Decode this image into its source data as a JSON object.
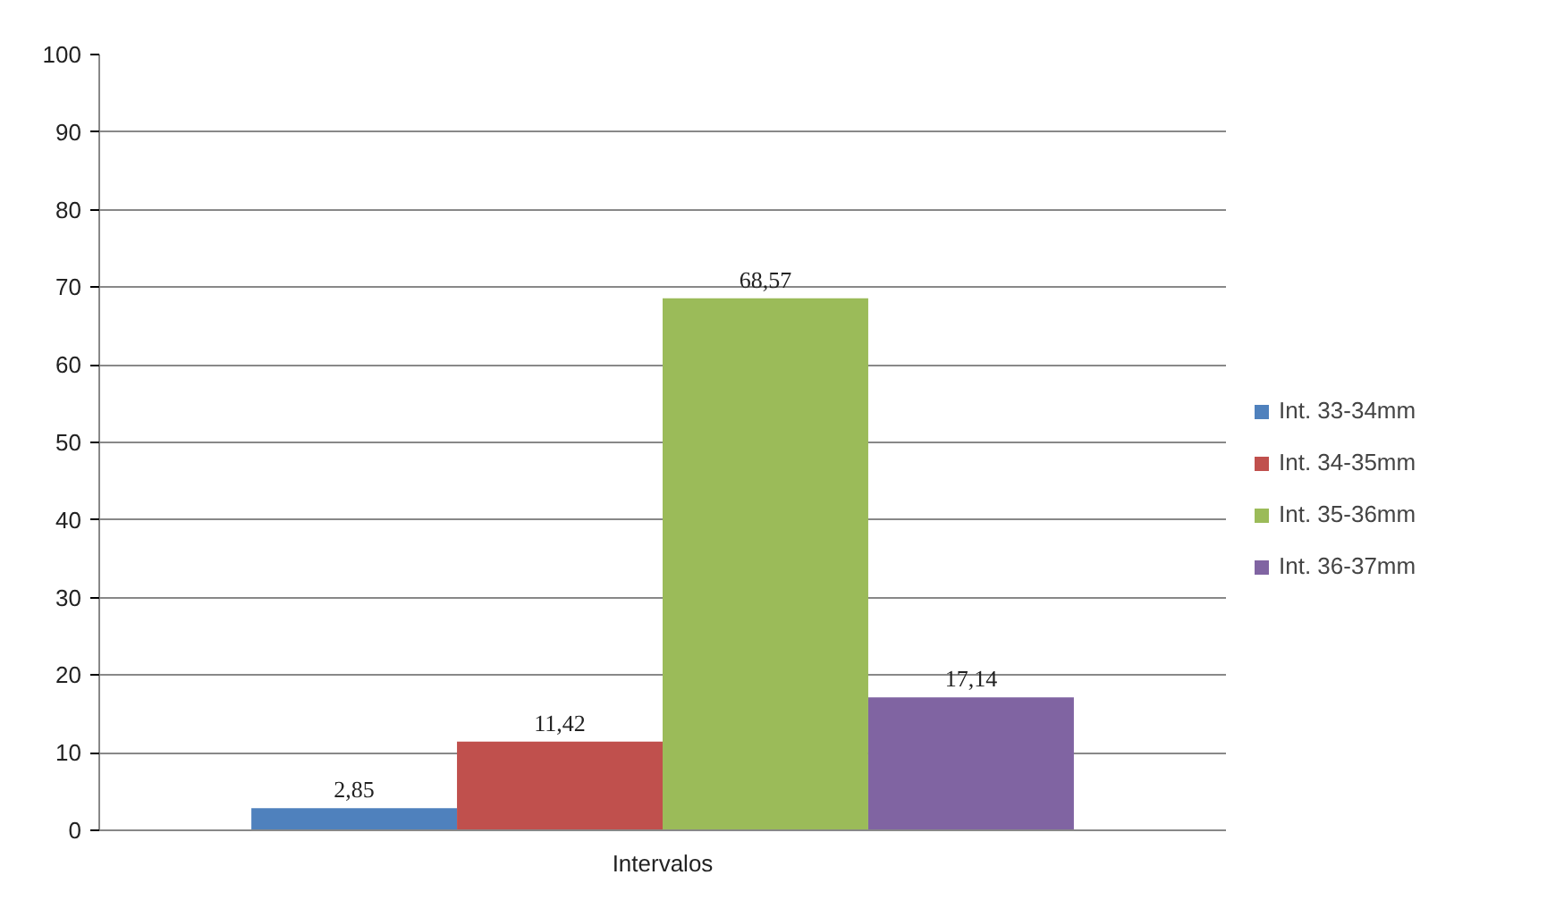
{
  "chart_data": {
    "type": "bar",
    "categories": [
      "Intervalos"
    ],
    "series": [
      {
        "name": "Int. 33-34mm",
        "color": "#4f81bd",
        "values": [
          2.85
        ],
        "value_labels": [
          "2,85"
        ]
      },
      {
        "name": "Int. 34-35mm",
        "color": "#c0504d",
        "values": [
          11.42
        ],
        "value_labels": [
          "11,42"
        ]
      },
      {
        "name": "Int. 35-36mm",
        "color": "#9bbb59",
        "values": [
          68.57
        ],
        "value_labels": [
          "68,57"
        ]
      },
      {
        "name": "Int. 36-37mm",
        "color": "#8064a2",
        "values": [
          17.14
        ],
        "value_labels": [
          "17,14"
        ]
      }
    ],
    "ylim": [
      0,
      100
    ],
    "yticks": [
      0,
      10,
      20,
      30,
      40,
      50,
      60,
      70,
      80,
      90,
      100
    ],
    "grid": "y",
    "legend": "right"
  }
}
